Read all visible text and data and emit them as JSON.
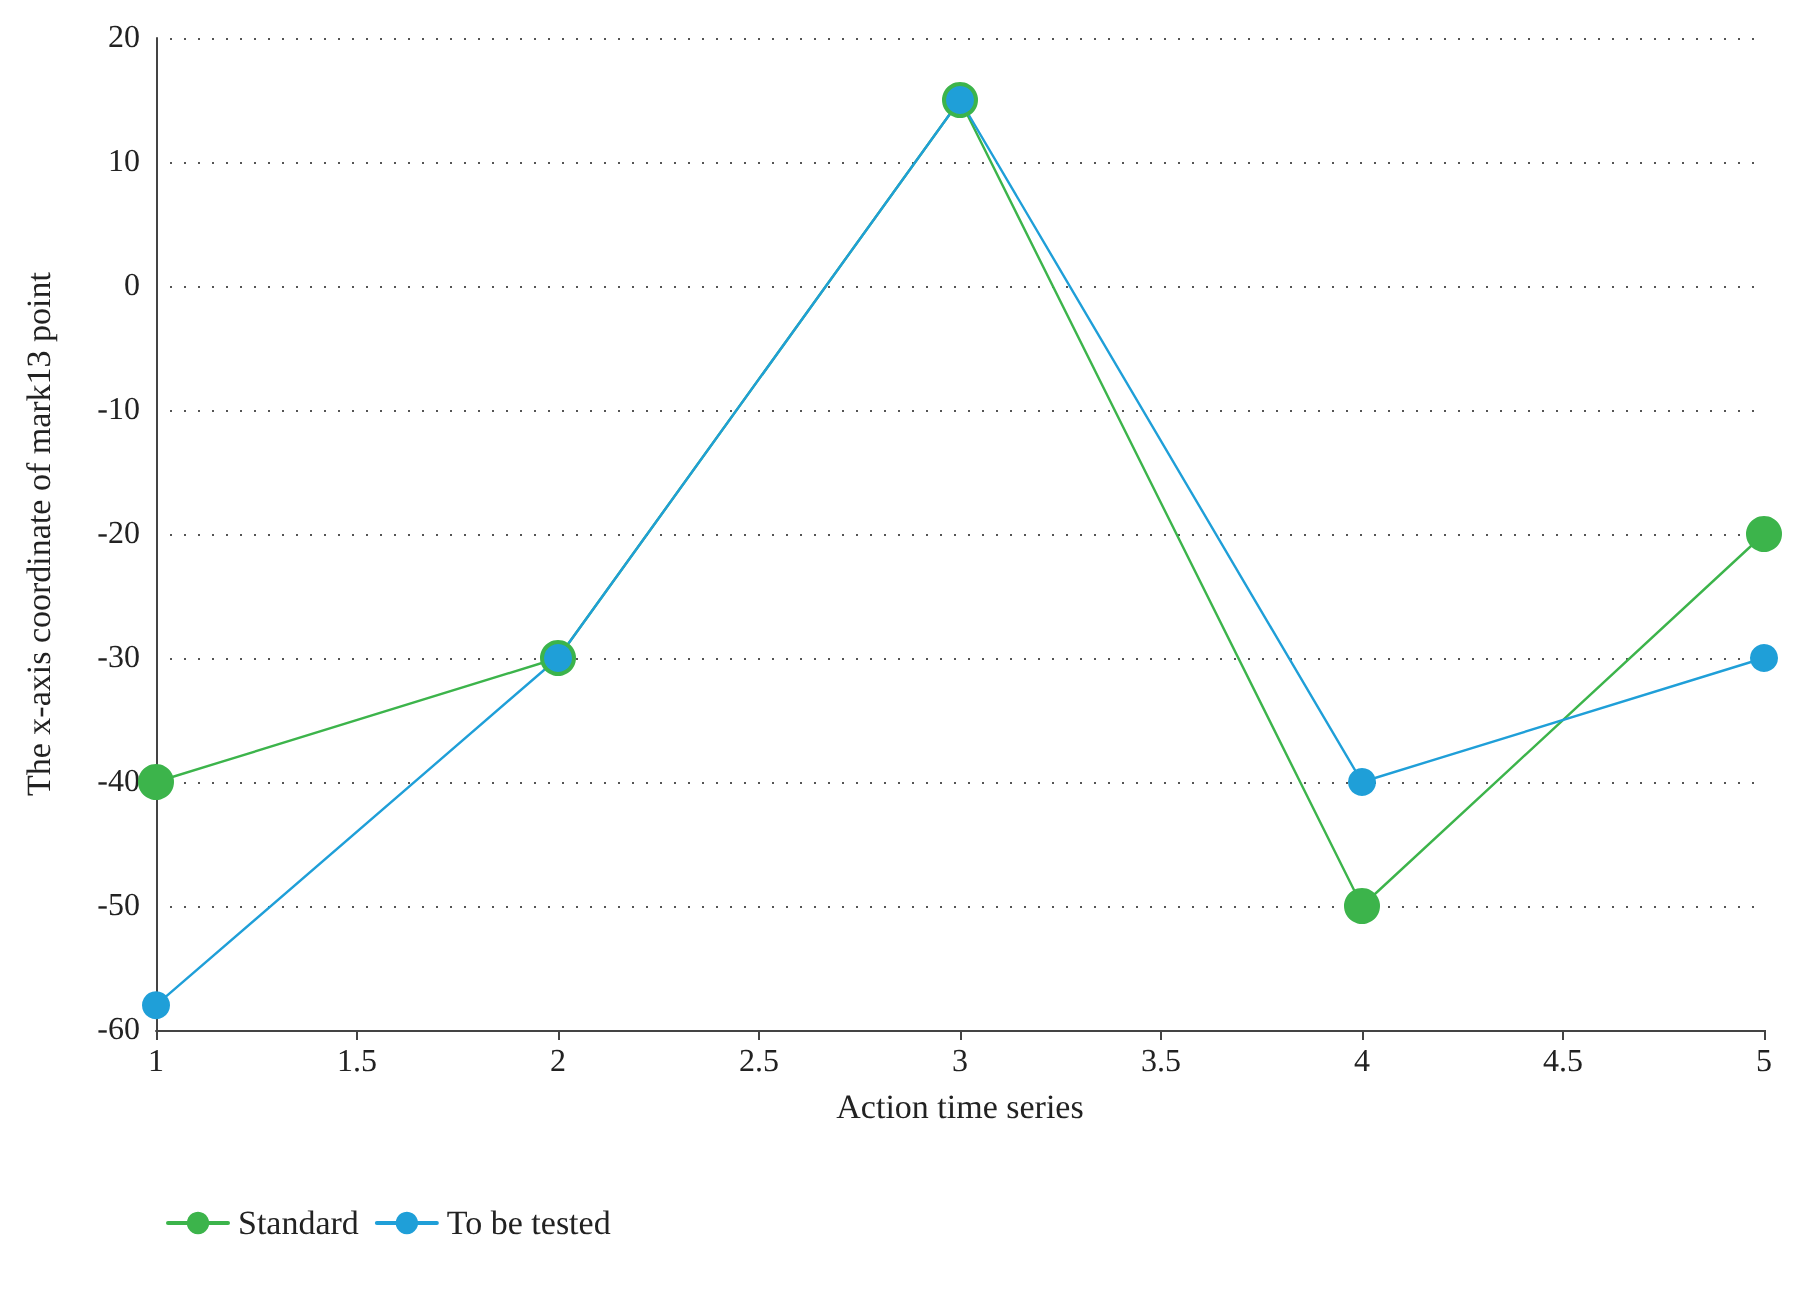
{
  "chart_data": {
    "type": "line",
    "xlabel": "Action time series",
    "ylabel": "The x-axis coordinate of mark13 point",
    "x": [
      1,
      2,
      3,
      4,
      5
    ],
    "series": [
      {
        "name": "Standard",
        "color": "#3cb44b",
        "values": [
          -40,
          -30,
          15,
          -50,
          -20
        ]
      },
      {
        "name": "To be tested",
        "color": "#1f9fd8",
        "values": [
          -58,
          -30,
          15,
          -40,
          -30
        ]
      }
    ],
    "xlim": [
      1,
      5
    ],
    "xticks": [
      1,
      1.5,
      2,
      2.5,
      3,
      3.5,
      4,
      4.5,
      5
    ],
    "ylim": [
      -60,
      20
    ],
    "yticks": [
      -60,
      -50,
      -40,
      -30,
      -20,
      -10,
      0,
      10,
      20
    ],
    "grid": "y",
    "legend": "bottom left",
    "marker": "circle",
    "line_style": "solid"
  }
}
